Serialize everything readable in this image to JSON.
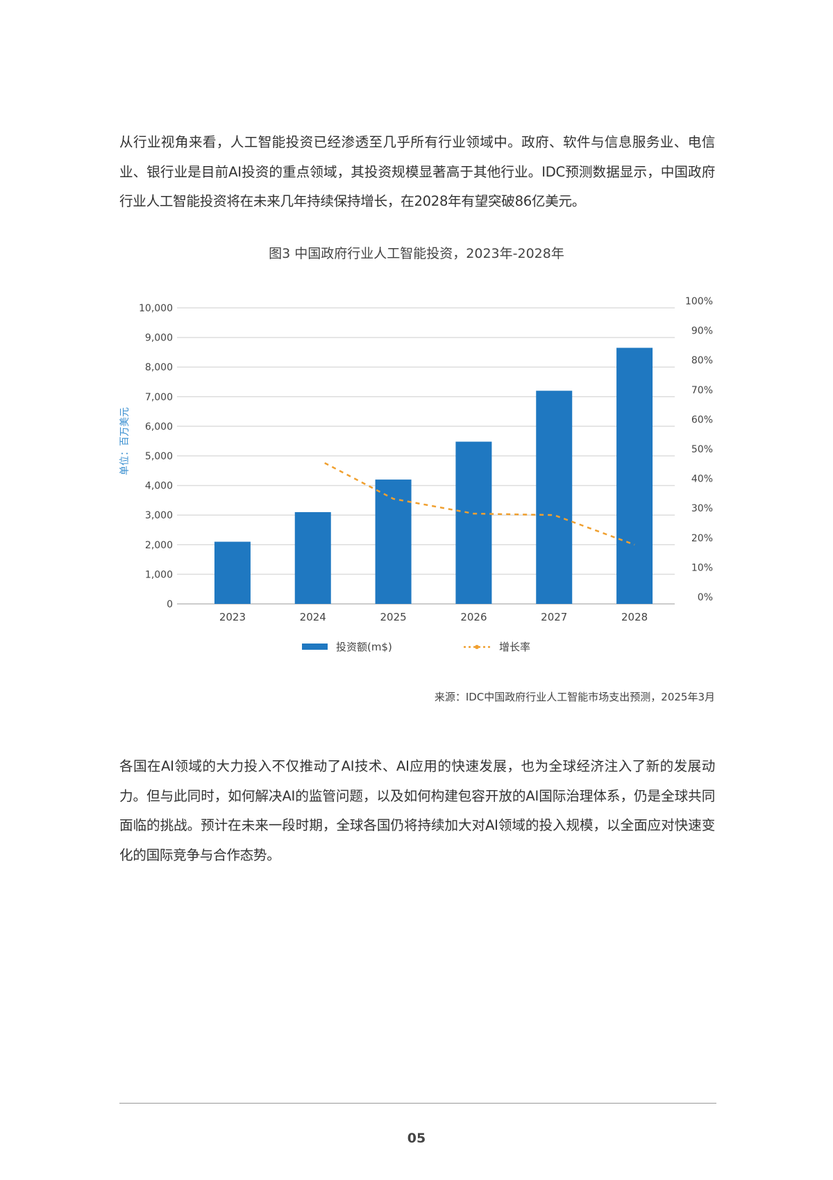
{
  "paragraphs": [
    "从行业视角来看，人工智能投资已经渗透至几乎所有行业领域中。政府、软件与信息服务业、电信业、银行业是目前AI投资的重点领域，其投资规模显著高于其他行业。IDC预测数据显示，中国政府行业人工智能投资将在未来几年持续保持增长，在2028年有望突破86亿美元。",
    "各国在AI领域的大力投入不仅推动了AI技术、AI应用的快速发展，也为全球经济注入了新的发展动力。但与此同时，如何解决AI的监管问题，以及如何构建包容开放的AI国际治理体系，仍是全球共同面临的挑战。预计在未来一段时期，全球各国仍将持续加大对AI领域的投入规模，以全面应对快速变化的国际竞争与合作态势。"
  ],
  "source": "来源：IDC中国政府行业人工智能市场支出预测，2025年3月",
  "page_number": "05",
  "chart_data": {
    "type": "bar",
    "title": "图3 中国政府行业人工智能投资，2023年-2028年",
    "ylabel": "单位：百万美元",
    "categories": [
      "2023",
      "2024",
      "2025",
      "2026",
      "2027",
      "2028"
    ],
    "ylim": [
      0,
      10000
    ],
    "yticks": [
      "0",
      "1,000",
      "2,000",
      "3,000",
      "4,000",
      "5,000",
      "6,000",
      "7,000",
      "8,000",
      "9,000",
      "10,000"
    ],
    "y2lim": [
      0,
      100
    ],
    "y2ticks": [
      "0%",
      "10%",
      "20%",
      "30%",
      "40%",
      "50%",
      "60%",
      "70%",
      "80%",
      "90%",
      "100%"
    ],
    "grid": true,
    "legend_position": "bottom",
    "series": [
      {
        "name": "投资额(m$)",
        "type": "bar",
        "axis": "left",
        "color": "#1f78c1",
        "values": [
          2100,
          3100,
          4200,
          5480,
          7200,
          8650
        ]
      },
      {
        "name": "增长率",
        "type": "line",
        "style": "dashed",
        "axis": "right",
        "color": "#f0a030",
        "values": [
          null,
          47.6,
          35.5,
          30.5,
          30,
          20
        ]
      }
    ]
  }
}
